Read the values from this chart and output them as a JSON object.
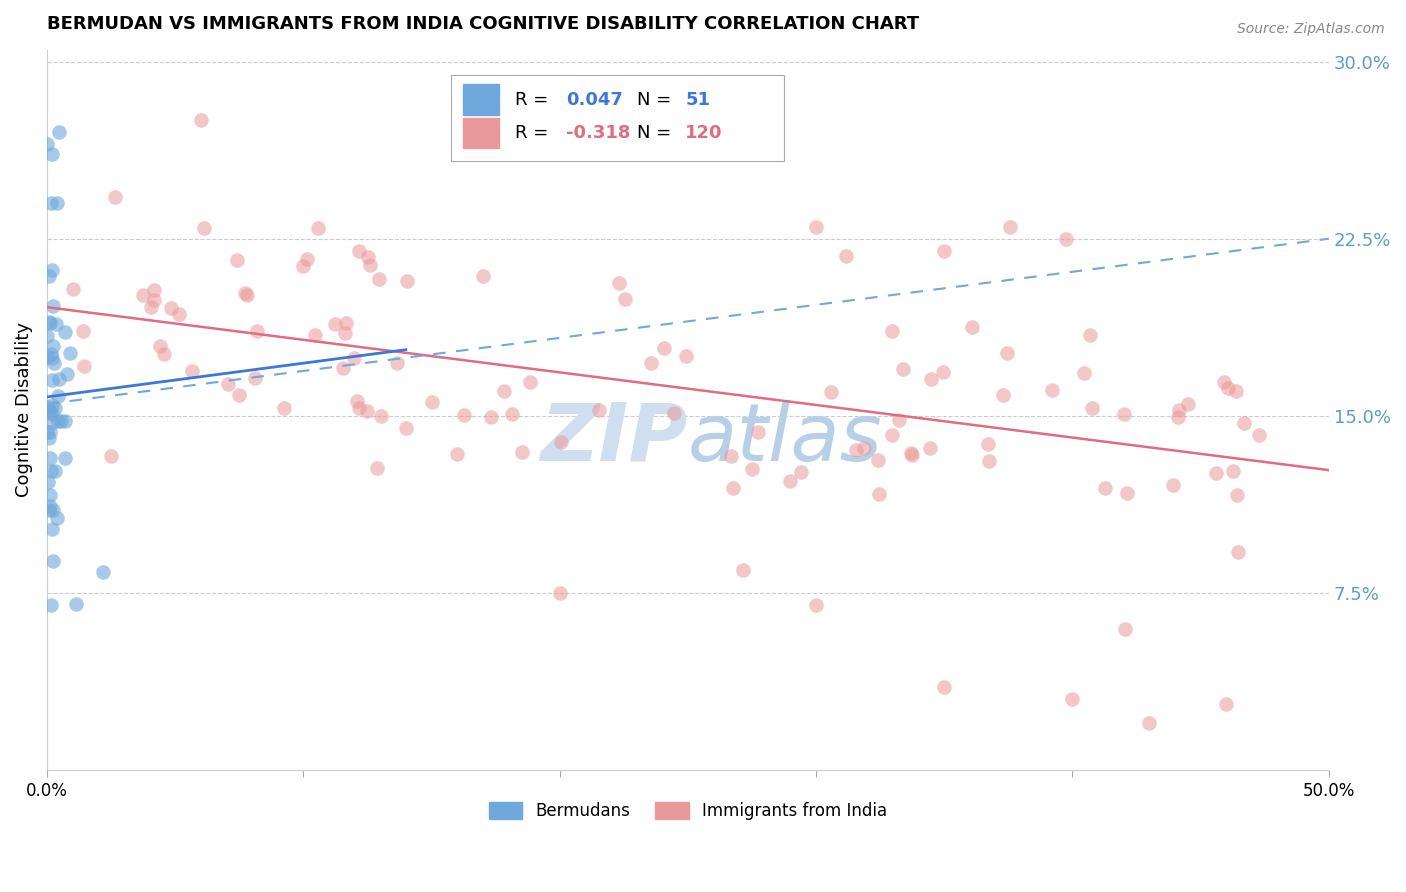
{
  "title": "BERMUDAN VS IMMIGRANTS FROM INDIA COGNITIVE DISABILITY CORRELATION CHART",
  "source": "Source: ZipAtlas.com",
  "ylabel": "Cognitive Disability",
  "xmin": 0.0,
  "xmax": 0.5,
  "ymin": 0.0,
  "ymax": 0.305,
  "bermuda_R": 0.047,
  "bermuda_N": 51,
  "india_R": -0.318,
  "india_N": 120,
  "bermuda_color": "#6fa8dc",
  "india_color": "#ea9999",
  "trendline_bermuda_color": "#3c78d8",
  "trendline_india_color": "#e06c7f",
  "trendline_dashed_color": "#6fa8dc",
  "grid_color": "#cccccc",
  "watermark_color": "#d0dff0",
  "right_axis_color": "#5b9bd5",
  "title_color": "#000000",
  "source_color": "#888888"
}
